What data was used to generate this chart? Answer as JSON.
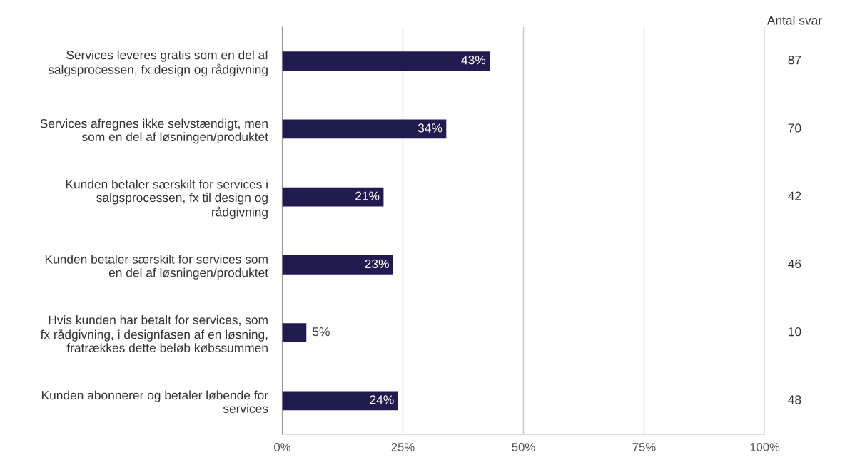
{
  "chart_data": {
    "type": "bar",
    "orientation": "horizontal",
    "categories": [
      "Services leveres gratis som en del af\nsalgsprocessen, fx design og rådgivning",
      "Services afregnes ikke selvstændigt, men\nsom en del af løsningen/produktet",
      "Kunden betaler særskilt for services i\nsalgsprocessen, fx til design og\nrådgivning",
      "Kunden betaler særskilt for services som\nen del af løsningen/produktet",
      "Hvis kunden har betalt for services, som\nfx rådgivning, i designfasen af en løsning,\nfratrækkes dette beløb købssummen",
      "Kunden abonnerer og betaler løbende for\nservices"
    ],
    "values": [
      43,
      34,
      21,
      23,
      5,
      24
    ],
    "value_labels": [
      "43%",
      "34%",
      "21%",
      "23%",
      "5%",
      "24%"
    ],
    "color": "#221b50",
    "xlim": [
      0,
      100
    ],
    "xticks": [
      {
        "value": 0,
        "label": "0%"
      },
      {
        "value": 25,
        "label": "25%"
      },
      {
        "value": 50,
        "label": "50%"
      },
      {
        "value": 75,
        "label": "75%"
      },
      {
        "value": 100,
        "label": "100%"
      }
    ],
    "grid": "x",
    "annotations": [
      "Antal svar",
      "87",
      "70",
      "42",
      "46",
      "10",
      "48"
    ]
  }
}
